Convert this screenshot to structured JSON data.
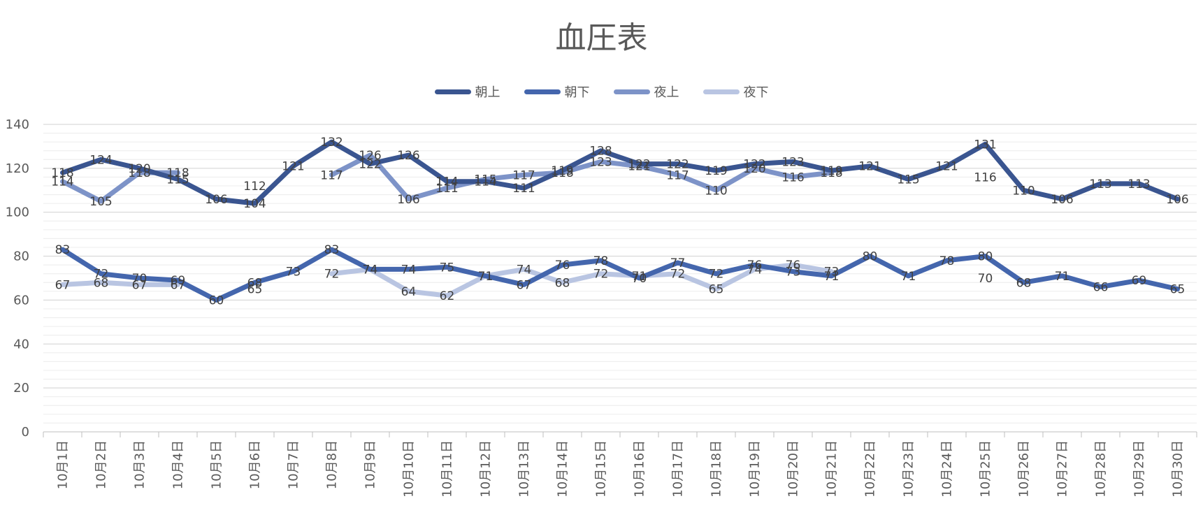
{
  "chart_data": {
    "type": "line",
    "title": "血圧表",
    "xlabel": "",
    "ylabel": "",
    "ylim": [
      0,
      140
    ],
    "yticks": [
      0,
      20,
      40,
      60,
      80,
      100,
      120,
      140
    ],
    "grid": true,
    "legend_position": "top",
    "categories": [
      "10月1日",
      "10月2日",
      "10月3日",
      "10月4日",
      "10月5日",
      "10月6日",
      "10月7日",
      "10月8日",
      "10月9日",
      "10月10日",
      "10月11日",
      "10月12日",
      "10月13日",
      "10月14日",
      "10月15日",
      "10月16日",
      "10月17日",
      "10月18日",
      "10月19日",
      "10月20日",
      "10月21日",
      "10月22日",
      "10月23日",
      "10月24日",
      "10月25日",
      "10月26日",
      "10月27日",
      "10月28日",
      "10月29日",
      "10月30日"
    ],
    "series": [
      {
        "name": "朝上",
        "color": "#3a5590",
        "values": [
          118,
          124,
          120,
          115,
          106,
          104,
          121,
          132,
          122,
          126,
          114,
          114,
          111,
          119,
          128,
          122,
          122,
          119,
          122,
          123,
          119,
          121,
          115,
          121,
          131,
          110,
          106,
          113,
          113,
          106
        ]
      },
      {
        "name": "朝下",
        "color": "#4466ad",
        "values": [
          83,
          72,
          70,
          69,
          60,
          68,
          73,
          83,
          74,
          74,
          75,
          71,
          67,
          76,
          78,
          70,
          77,
          72,
          76,
          73,
          71,
          80,
          71,
          78,
          80,
          68,
          71,
          66,
          69,
          65
        ]
      },
      {
        "name": "夜上",
        "color": "#7d93c8",
        "values": [
          114,
          105,
          118,
          118,
          null,
          112,
          null,
          117,
          126,
          106,
          111,
          115,
          117,
          118,
          123,
          121,
          117,
          110,
          120,
          116,
          118,
          null,
          null,
          null,
          116,
          null,
          null,
          null,
          null,
          null
        ]
      },
      {
        "name": "夜下",
        "color": "#b9c5e2",
        "values": [
          67,
          68,
          67,
          67,
          null,
          65,
          null,
          72,
          74,
          64,
          62,
          71,
          74,
          68,
          72,
          71,
          72,
          65,
          74,
          76,
          73,
          null,
          null,
          null,
          70,
          null,
          null,
          null,
          null,
          null
        ]
      }
    ]
  }
}
